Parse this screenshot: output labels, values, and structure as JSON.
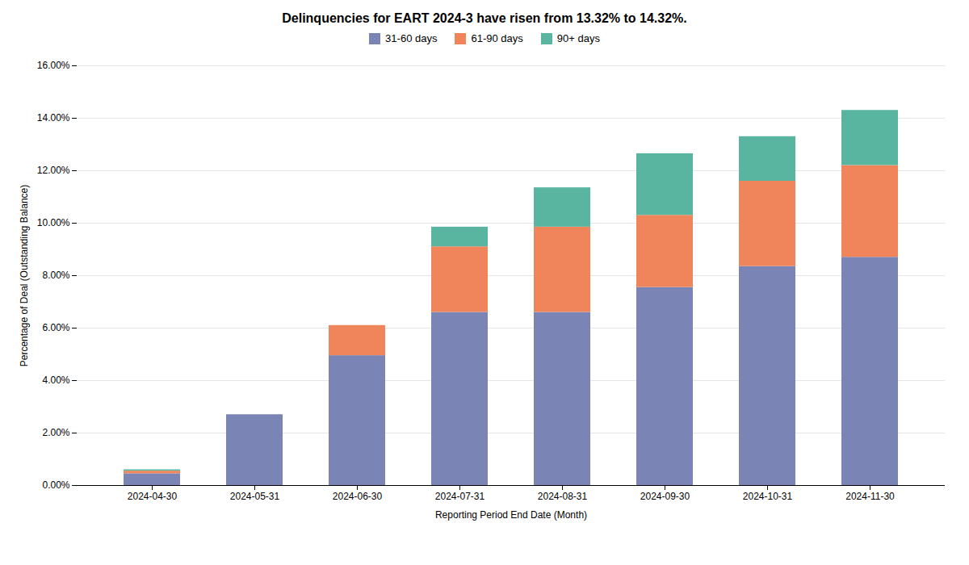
{
  "chart_data": {
    "type": "bar",
    "stacked": true,
    "title": "Delinquencies for EART 2024-3 have risen from 13.32% to 14.32%.",
    "xlabel": "Reporting Period End Date (Month)",
    "ylabel": "Percentage of Deal (Outstanding Balance)",
    "categories": [
      "2024-04-30",
      "2024-05-31",
      "2024-06-30",
      "2024-07-31",
      "2024-08-31",
      "2024-09-30",
      "2024-10-31",
      "2024-11-30"
    ],
    "series": [
      {
        "name": "31-60 days",
        "color": "#7b85b5",
        "values": [
          0.45,
          2.7,
          4.95,
          6.6,
          6.6,
          7.55,
          8.35,
          8.7
        ]
      },
      {
        "name": "61-90 days",
        "color": "#f0845a",
        "values": [
          0.1,
          0.0,
          1.15,
          2.5,
          3.25,
          2.75,
          3.25,
          3.5
        ]
      },
      {
        "name": "90+ days",
        "color": "#5ab5a0",
        "values": [
          0.05,
          0.0,
          0.0,
          0.75,
          1.5,
          2.35,
          1.7,
          2.1
        ]
      }
    ],
    "ylim": [
      0,
      16.0
    ],
    "yticks": [
      {
        "value": 0,
        "label": "0.00%"
      },
      {
        "value": 2,
        "label": "2.00%"
      },
      {
        "value": 4,
        "label": "4.00%"
      },
      {
        "value": 6,
        "label": "6.00%"
      },
      {
        "value": 8,
        "label": "8.00%"
      },
      {
        "value": 10,
        "label": "10.00%"
      },
      {
        "value": 12,
        "label": "12.00%"
      },
      {
        "value": 14,
        "label": "14.00%"
      },
      {
        "value": 16,
        "label": "16.00%"
      }
    ],
    "grid": true,
    "legend": "top"
  }
}
